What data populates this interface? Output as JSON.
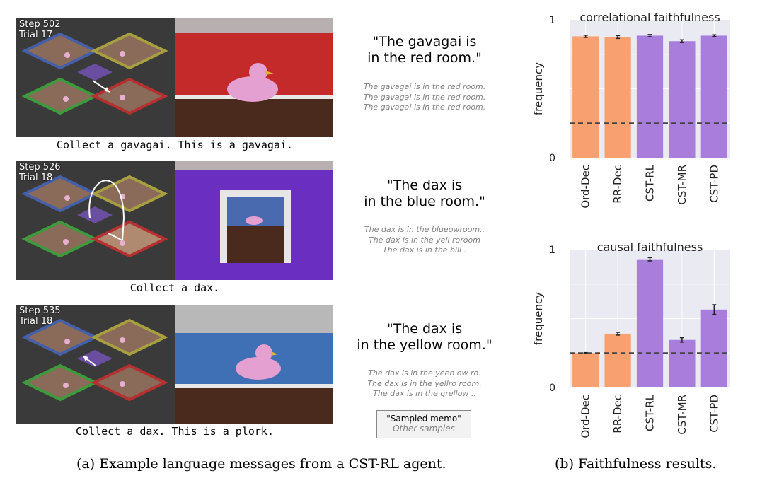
{
  "panels": [
    {
      "step": "Step 502",
      "trial": "Trial 17",
      "room_color": "#c42a2a",
      "caption": "Collect a gavagai. This is a gavagai.",
      "quote": [
        "\"The gavagai is",
        "in the red room.\""
      ],
      "samples": [
        "The gavagai is in the red room.",
        "The gavagai is in the red room.",
        "The gavagai is in the red room."
      ]
    },
    {
      "step": "Step 526",
      "trial": "Trial 18",
      "room_color": "#6a2fc0",
      "caption": "Collect a dax.",
      "quote": [
        "\"The dax is",
        "in the blue room.\""
      ],
      "samples": [
        "The dax is in the blueowroom..",
        "The dax is in the yell roroom",
        "The dax is in the blll  ."
      ]
    },
    {
      "step": "Step 535",
      "trial": "Trial 18",
      "room_color": "#3f6fb5",
      "caption": "Collect a dax. This is a plork.",
      "quote": [
        "\"The dax is",
        "in the yellow room.\""
      ],
      "samples": [
        "The dax is in the yeen ow ro.",
        "The dax is in the yellro room.",
        "The dax is in the grellow .."
      ]
    }
  ],
  "legend": {
    "primary": "\"Sampled memo\"",
    "secondary": "Other samples"
  },
  "subcaption_a": "(a) Example language messages from a CST-RL agent.",
  "subcaption_b": "(b) Faithfulness results.",
  "colors": {
    "orange": "#f9a071",
    "purple": "#a97ddc",
    "plot_bg": "#eaeaf2",
    "grid": "#ffffff"
  },
  "chart_data": [
    {
      "type": "bar",
      "title": "correlational faithfulness",
      "ylabel": "frequency",
      "categories": [
        "Ord-Dec",
        "RR-Dec",
        "CST-RL",
        "CST-MR",
        "CST-PD"
      ],
      "values": [
        0.88,
        0.875,
        0.885,
        0.845,
        0.885
      ],
      "errors": [
        0.008,
        0.01,
        0.008,
        0.01,
        0.006
      ],
      "bar_colors": [
        "orange",
        "orange",
        "purple",
        "purple",
        "purple"
      ],
      "ylim": [
        0,
        1
      ],
      "yticks": [
        "0",
        "1"
      ],
      "reference_line": 0.25,
      "grid": true
    },
    {
      "type": "bar",
      "title": "causal faithfulness",
      "ylabel": "frequency",
      "categories": [
        "Ord-Dec",
        "RR-Dec",
        "CST-RL",
        "CST-MR",
        "CST-PD"
      ],
      "values": [
        0.25,
        0.39,
        0.93,
        0.345,
        0.565
      ],
      "errors": [
        0.003,
        0.01,
        0.012,
        0.016,
        0.035
      ],
      "bar_colors": [
        "orange",
        "orange",
        "purple",
        "purple",
        "purple"
      ],
      "ylim": [
        0,
        1
      ],
      "yticks": [
        "0",
        "1"
      ],
      "reference_line": 0.25,
      "grid": true
    }
  ]
}
